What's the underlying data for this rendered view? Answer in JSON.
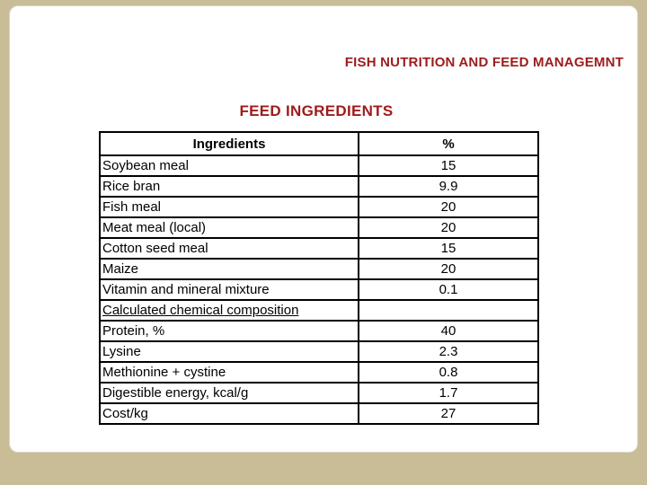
{
  "slide": {
    "title": "FISH NUTRITION AND FEED MANAGEMNT",
    "subtitle": "FEED INGREDIENTS"
  },
  "colors": {
    "accent_red": "#9e1b1b",
    "frame_khaki": "#c9bd97",
    "table_border": "#000000"
  },
  "table": {
    "headers": [
      "Ingredients",
      "%"
    ],
    "rows": [
      {
        "label": "Soybean meal",
        "value": "15",
        "underline": false
      },
      {
        "label": "Rice bran",
        "value": "9.9",
        "underline": false
      },
      {
        "label": "Fish meal",
        "value": "20",
        "underline": false
      },
      {
        "label": "Meat meal (local)",
        "value": "20",
        "underline": false
      },
      {
        "label": "Cotton seed meal",
        "value": "15",
        "underline": false
      },
      {
        "label": "Maize",
        "value": "20",
        "underline": false
      },
      {
        "label": "Vitamin and mineral mixture",
        "value": "0.1",
        "underline": false
      },
      {
        "label": "Calculated chemical composition",
        "value": "",
        "underline": true
      },
      {
        "label": "Protein, %",
        "value": "40",
        "underline": false
      },
      {
        "label": "Lysine",
        "value": "2.3",
        "underline": false
      },
      {
        "label": "Methionine + cystine",
        "value": "0.8",
        "underline": false
      },
      {
        "label": "Digestible energy, kcal/g",
        "value": "1.7",
        "underline": false
      },
      {
        "label": "Cost/kg",
        "value": "27",
        "underline": false
      }
    ]
  }
}
